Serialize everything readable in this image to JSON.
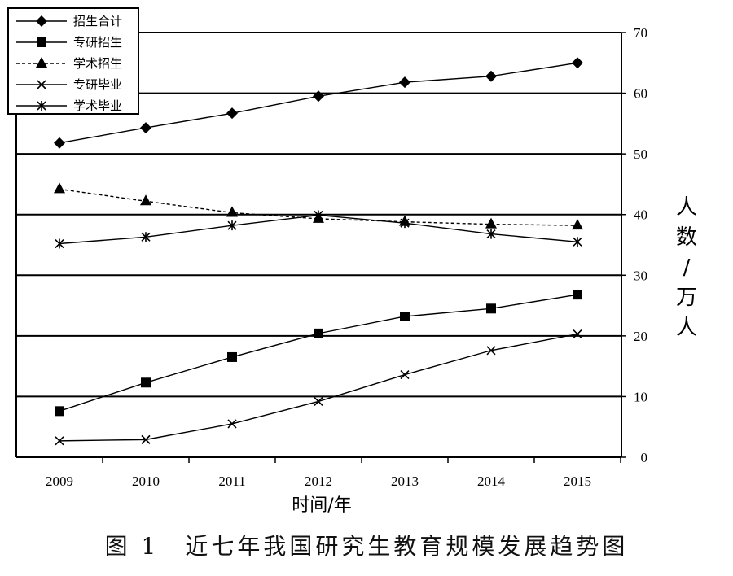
{
  "caption": "图 1　近七年我国研究生教育规模发展趋势图",
  "chart_data": {
    "type": "line",
    "x": [
      2009,
      2010,
      2011,
      2012,
      2013,
      2014,
      2015
    ],
    "xlabel": "时间/年",
    "ylabel": "人数/万人",
    "ylabel_chars": [
      "人",
      "数",
      "/",
      "万",
      "人"
    ],
    "ylim": [
      0,
      70
    ],
    "yticks": [
      0,
      10,
      20,
      30,
      40,
      50,
      60,
      70
    ],
    "y_axis_side": "right",
    "grid": true,
    "legend_position": "top-left",
    "series": [
      {
        "name": "招生合计",
        "marker": "diamond",
        "dash": false,
        "values": [
          51.8,
          54.3,
          56.7,
          59.5,
          61.8,
          62.8,
          65.0
        ]
      },
      {
        "name": "专研招生",
        "marker": "square",
        "dash": false,
        "values": [
          7.6,
          12.3,
          16.5,
          20.4,
          23.2,
          24.5,
          26.8
        ]
      },
      {
        "name": "学术招生",
        "marker": "triangle",
        "dash": true,
        "values": [
          44.2,
          42.2,
          40.3,
          39.3,
          38.8,
          38.4,
          38.2
        ]
      },
      {
        "name": "专研毕业",
        "marker": "x",
        "dash": false,
        "values": [
          2.7,
          2.9,
          5.5,
          9.2,
          13.6,
          17.6,
          20.3
        ]
      },
      {
        "name": "学术毕业",
        "marker": "asterisk",
        "dash": false,
        "values": [
          35.2,
          36.3,
          38.2,
          39.9,
          38.6,
          36.8,
          35.5
        ]
      }
    ]
  }
}
